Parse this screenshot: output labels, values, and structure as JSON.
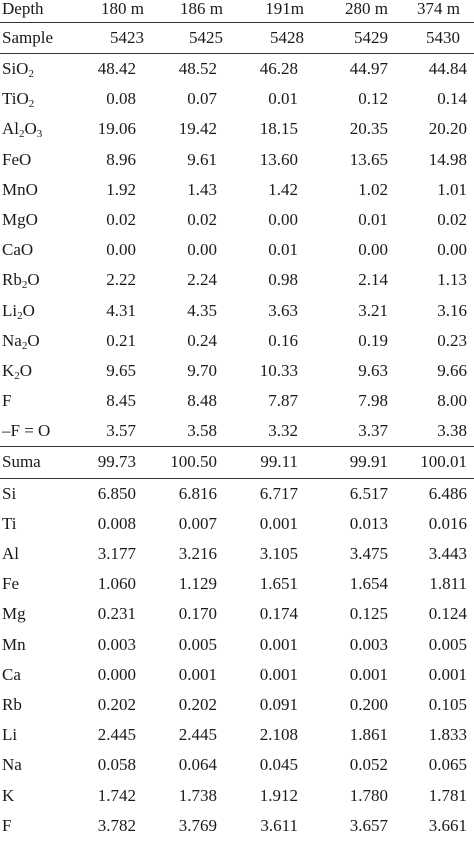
{
  "header": {
    "depth_label": "Depth",
    "depths": [
      "180 m",
      "186 m",
      "191m",
      "280 m",
      "374 m"
    ],
    "sample_label": "Sample",
    "samples": [
      "5423",
      "5425",
      "5428",
      "5429",
      "5430"
    ]
  },
  "oxides": [
    {
      "base": "SiO",
      "sub": "2",
      "post": "",
      "values": [
        "48.42",
        "48.52",
        "46.28",
        "44.97",
        "44.84"
      ]
    },
    {
      "base": "TiO",
      "sub": "2",
      "post": "",
      "values": [
        "0.08",
        "0.07",
        "0.01",
        "0.12",
        "0.14"
      ]
    },
    {
      "base": "Al",
      "sub": "2",
      "post": "O",
      "sub2": "3",
      "values": [
        "19.06",
        "19.42",
        "18.15",
        "20.35",
        "20.20"
      ]
    },
    {
      "base": "FeO",
      "sub": "",
      "post": "",
      "values": [
        "8.96",
        "9.61",
        "13.60",
        "13.65",
        "14.98"
      ]
    },
    {
      "base": "MnO",
      "sub": "",
      "post": "",
      "values": [
        "1.92",
        "1.43",
        "1.42",
        "1.02",
        "1.01"
      ]
    },
    {
      "base": "MgO",
      "sub": "",
      "post": "",
      "values": [
        "0.02",
        "0.02",
        "0.00",
        "0.01",
        "0.02"
      ]
    },
    {
      "base": "CaO",
      "sub": "",
      "post": "",
      "values": [
        "0.00",
        "0.00",
        "0.01",
        "0.00",
        "0.00"
      ]
    },
    {
      "base": "Rb",
      "sub": "2",
      "post": "O",
      "values": [
        "2.22",
        "2.24",
        "0.98",
        "2.14",
        "1.13"
      ]
    },
    {
      "base": "Li",
      "sub": "2",
      "post": "O",
      "values": [
        "4.31",
        "4.35",
        "3.63",
        "3.21",
        "3.16"
      ]
    },
    {
      "base": "Na",
      "sub": "2",
      "post": "O",
      "values": [
        "0.21",
        "0.24",
        "0.16",
        "0.19",
        "0.23"
      ]
    },
    {
      "base": "K",
      "sub": "2",
      "post": "O",
      "values": [
        "9.65",
        "9.70",
        "10.33",
        "9.63",
        "9.66"
      ]
    },
    {
      "base": "F",
      "sub": "",
      "post": "",
      "values": [
        "8.45",
        "8.48",
        "7.87",
        "7.98",
        "8.00"
      ]
    },
    {
      "base": "–F = O",
      "sub": "",
      "post": "",
      "values": [
        "3.57",
        "3.58",
        "3.32",
        "3.37",
        "3.38"
      ]
    }
  ],
  "total": {
    "label": "Suma",
    "values": [
      "99.73",
      "100.50",
      "99.11",
      "99.91",
      "100.01"
    ]
  },
  "atoms": [
    {
      "label": "Si",
      "values": [
        "6.850",
        "6.816",
        "6.717",
        "6.517",
        "6.486"
      ]
    },
    {
      "label": "Ti",
      "values": [
        "0.008",
        "0.007",
        "0.001",
        "0.013",
        "0.016"
      ]
    },
    {
      "label": "Al",
      "values": [
        "3.177",
        "3.216",
        "3.105",
        "3.475",
        "3.443"
      ]
    },
    {
      "label": "Fe",
      "values": [
        "1.060",
        "1.129",
        "1.651",
        "1.654",
        "1.811"
      ]
    },
    {
      "label": "Mg",
      "values": [
        "0.231",
        "0.170",
        "0.174",
        "0.125",
        "0.124"
      ]
    },
    {
      "label": "Mn",
      "values": [
        "0.003",
        "0.005",
        "0.001",
        "0.003",
        "0.005"
      ]
    },
    {
      "label": "Ca",
      "values": [
        "0.000",
        "0.001",
        "0.001",
        "0.001",
        "0.001"
      ]
    },
    {
      "label": "Rb",
      "values": [
        "0.202",
        "0.202",
        "0.091",
        "0.200",
        "0.105"
      ]
    },
    {
      "label": "Li",
      "values": [
        "2.445",
        "2.445",
        "2.108",
        "1.861",
        "1.833"
      ]
    },
    {
      "label": "Na",
      "values": [
        "0.058",
        "0.064",
        "0.045",
        "0.052",
        "0.065"
      ]
    },
    {
      "label": "K",
      "values": [
        "1.742",
        "1.738",
        "1.912",
        "1.780",
        "1.781"
      ]
    },
    {
      "label": "F",
      "values": [
        "3.782",
        "3.769",
        "3.611",
        "3.657",
        "3.661"
      ]
    }
  ]
}
